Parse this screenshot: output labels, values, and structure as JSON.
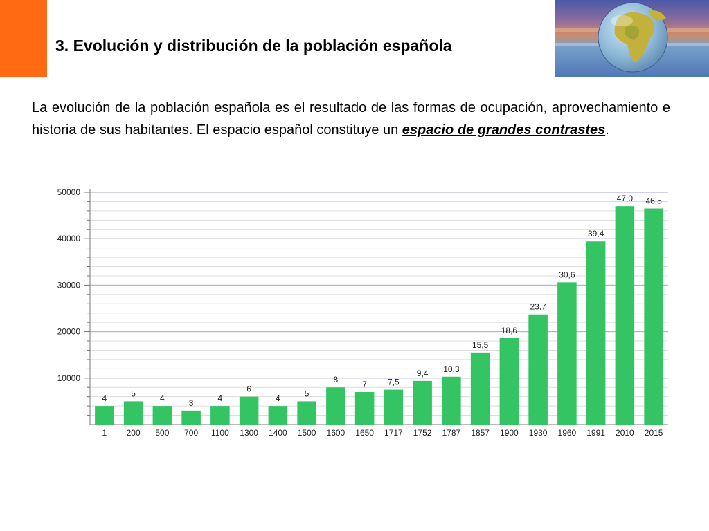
{
  "slide": {
    "title": "3. Evolución y distribución de la población española",
    "paragraph_before": "La evolución de la población española es el resultado de las formas de ocupación, aprovechamiento e historia de sus habitantes. El espacio español constituye un ",
    "paragraph_emphasis": "espacio de grandes contrastes",
    "paragraph_after": "."
  },
  "colors": {
    "accent": "#ff6a13",
    "bar": "#34c463",
    "gridline": "#b9b2d8"
  },
  "chart_data": {
    "type": "bar",
    "categories": [
      "1",
      "200",
      "500",
      "700",
      "1100",
      "1300",
      "1400",
      "1500",
      "1600",
      "1650",
      "1717",
      "1752",
      "1787",
      "1857",
      "1900",
      "1930",
      "1960",
      "1991",
      "2010",
      "2015"
    ],
    "values": [
      4000,
      5000,
      4000,
      3000,
      4000,
      6000,
      4000,
      5000,
      8000,
      7000,
      7500,
      9400,
      10300,
      15500,
      18600,
      23700,
      30600,
      39400,
      47000,
      46500
    ],
    "data_labels": [
      "4",
      "5",
      "4",
      "3",
      "4",
      "6",
      "4",
      "5",
      "8",
      "7",
      "7,5",
      "9,4",
      "10,3",
      "15,5",
      "18,6",
      "23,7",
      "30,6",
      "39,4",
      "47,0",
      "46,5"
    ],
    "y_ticks": [
      "10000",
      "20000",
      "30000",
      "40000",
      "50000"
    ],
    "ylim": [
      0,
      50000
    ],
    "grid": true
  }
}
